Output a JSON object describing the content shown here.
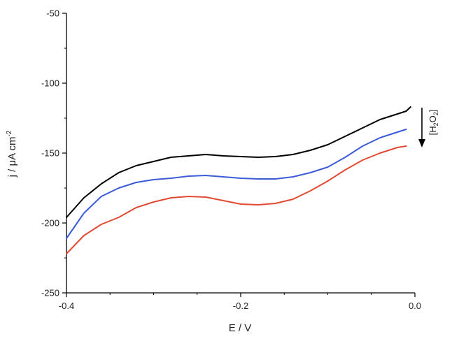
{
  "chart_data": {
    "type": "line",
    "title": "",
    "xlabel": "E / V",
    "ylabel_parts": [
      "j / ",
      "μ",
      "A cm",
      "-2"
    ],
    "xlim": [
      -0.4,
      0.0
    ],
    "ylim": [
      -250,
      -50
    ],
    "x_ticks": [
      -0.4,
      -0.2,
      0.0
    ],
    "x_tick_labels": [
      "-0.4",
      "-0.2",
      "0.0"
    ],
    "y_ticks": [
      -250,
      -200,
      -150,
      -100,
      -50
    ],
    "y_tick_labels": [
      "-250",
      "-200",
      "-150",
      "-100",
      "-50"
    ],
    "x_minor_step": 0.05,
    "y_minor_step": 25,
    "grid": false,
    "annotation": {
      "bracket_open": "[",
      "species_H": "H",
      "sub_2a": "2",
      "species_O": "O",
      "sub_2b": "2",
      "bracket_close": "]",
      "direction": "down",
      "meaning": "increasing"
    },
    "series": [
      {
        "name": "black",
        "color": "#000000",
        "x": [
          -0.4,
          -0.38,
          -0.36,
          -0.34,
          -0.32,
          -0.3,
          -0.28,
          -0.26,
          -0.24,
          -0.22,
          -0.2,
          -0.18,
          -0.16,
          -0.14,
          -0.12,
          -0.1,
          -0.08,
          -0.06,
          -0.04,
          -0.02,
          -0.01,
          -0.005
        ],
        "y": [
          -196,
          -182,
          -172,
          -164,
          -159,
          -156,
          -153,
          -152,
          -151,
          -152,
          -152.5,
          -153,
          -152.5,
          -151,
          -148,
          -144,
          -138,
          -132,
          -126,
          -122,
          -120,
          -117
        ]
      },
      {
        "name": "blue",
        "color": "#3b5bd9",
        "x": [
          -0.4,
          -0.38,
          -0.36,
          -0.34,
          -0.32,
          -0.3,
          -0.28,
          -0.26,
          -0.24,
          -0.22,
          -0.2,
          -0.18,
          -0.16,
          -0.14,
          -0.12,
          -0.1,
          -0.08,
          -0.06,
          -0.04,
          -0.02,
          -0.01
        ],
        "y": [
          -211,
          -193,
          -181,
          -175,
          -171,
          -169,
          -168,
          -166.5,
          -166,
          -167,
          -168,
          -168.5,
          -168.5,
          -167,
          -164,
          -160,
          -153,
          -145,
          -139,
          -135,
          -133
        ]
      },
      {
        "name": "red",
        "color": "#e34a33",
        "x": [
          -0.4,
          -0.38,
          -0.36,
          -0.34,
          -0.32,
          -0.3,
          -0.28,
          -0.26,
          -0.24,
          -0.22,
          -0.2,
          -0.18,
          -0.16,
          -0.14,
          -0.12,
          -0.1,
          -0.08,
          -0.06,
          -0.04,
          -0.02,
          -0.01
        ],
        "y": [
          -222,
          -209,
          -201,
          -196,
          -189,
          -185,
          -182,
          -181,
          -181.5,
          -184,
          -186.5,
          -187,
          -186,
          -183,
          -177,
          -170,
          -162,
          -155,
          -150,
          -146,
          -145
        ]
      }
    ]
  }
}
